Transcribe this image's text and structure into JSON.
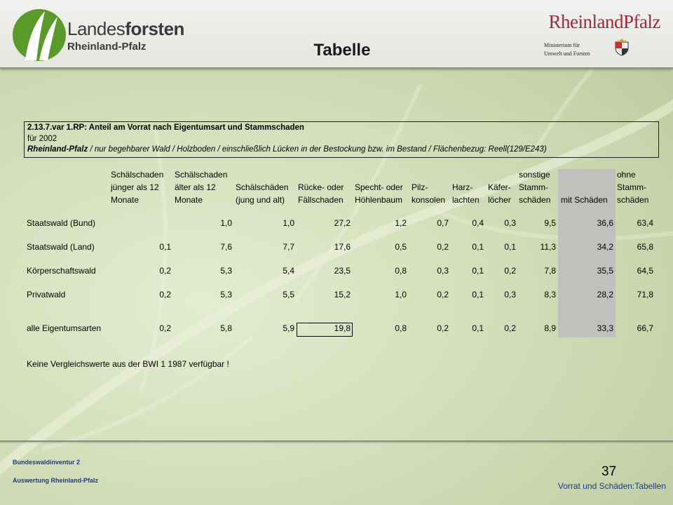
{
  "header": {
    "logo_left_line1_bold": "forsten",
    "logo_left_line1_regular": "Landes",
    "logo_left_line2": "Rheinland-Pfalz",
    "page_title": "Tabelle",
    "logo_right_name": "RheinlandPfalz",
    "ministry_line1": "Ministerium für",
    "ministry_line2": "Umwelt und Forsten",
    "colors": {
      "brand_green": "#5a9a2a",
      "rp_red": "#9c2a3a"
    }
  },
  "caption": {
    "line1": "2.13.7.var 1.RP: Anteil am Vorrat nach Eigentumsart und Stammschaden",
    "line2": "für 2002",
    "line3_bold": "Rheinland-Pfalz",
    "line3_rest": " / nur begehbarer Wald / Holzboden / einschließlich Lücken in der Bestockung bzw. im Bestand / Flächenbezug: Reell(129/E243)"
  },
  "table": {
    "columns": [
      [
        "Schälschaden",
        "jünger als 12",
        "Monate"
      ],
      [
        "Schälschaden",
        "älter als 12",
        "Monate"
      ],
      [
        "",
        "Schälschäden",
        "(jung und alt)"
      ],
      [
        "",
        "Rücke- oder",
        "Fällschaden"
      ],
      [
        "",
        "Specht- oder",
        "Höhlenbaum"
      ],
      [
        "",
        "Pilz-",
        "konsolen"
      ],
      [
        "",
        "Harz-",
        "lachten"
      ],
      [
        "",
        "Käfer-",
        "löcher"
      ],
      [
        "sonstige",
        "Stamm-",
        "schäden"
      ],
      [
        "",
        "",
        "mit Schäden"
      ],
      [
        "ohne",
        "Stamm-",
        "schäden"
      ]
    ],
    "rows": [
      {
        "label": "Staatswald (Bund)",
        "values": [
          "",
          "1,0",
          "1,0",
          "27,2",
          "1,2",
          "0,7",
          "0,4",
          "0,3",
          "9,5",
          "36,6",
          "63,4"
        ]
      },
      {
        "label": "Staatswald (Land)",
        "values": [
          "0,1",
          "7,6",
          "7,7",
          "17,6",
          "0,5",
          "0,2",
          "0,1",
          "0,1",
          "11,3",
          "34,2",
          "65,8"
        ]
      },
      {
        "label": "Körperschaftswald",
        "values": [
          "0,2",
          "5,3",
          "5,4",
          "23,5",
          "0,8",
          "0,3",
          "0,1",
          "0,2",
          "7,8",
          "35,5",
          "64,5"
        ]
      },
      {
        "label": "Privatwald",
        "values": [
          "0,2",
          "5,3",
          "5,5",
          "15,2",
          "1,0",
          "0,2",
          "0,1",
          "0,3",
          "8,3",
          "28,2",
          "71,8"
        ]
      },
      {
        "label": "alle Eigentumsarten",
        "values": [
          "0,2",
          "5,8",
          "5,9",
          "19,8",
          "0,8",
          "0,2",
          "0,1",
          "0,2",
          "8,9",
          "33,3",
          "66,7"
        ]
      }
    ]
  },
  "note": "Keine Vergleichswerte aus der BWI 1 1987 verfügbar !",
  "footer": {
    "line1": "Bundeswaldinventur 2",
    "line2": "Auswertung Rheinland-Pfalz",
    "page_number": "37",
    "section": "Vorrat und Schäden:Tabellen"
  }
}
